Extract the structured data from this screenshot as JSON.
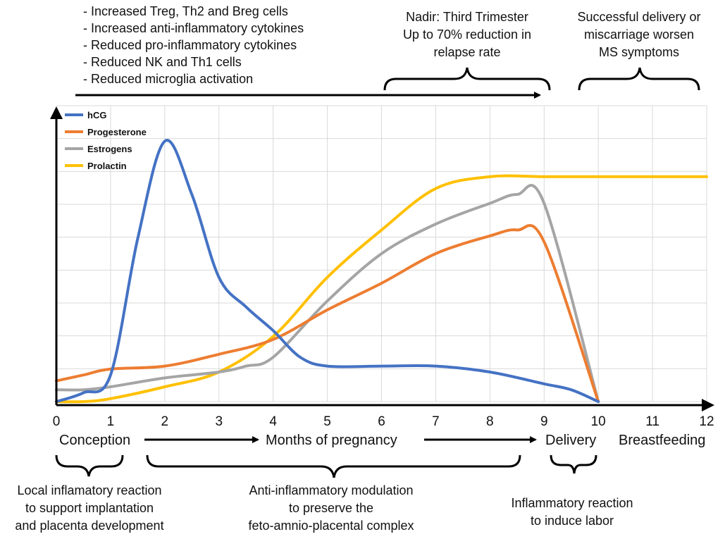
{
  "chart_data": {
    "type": "line",
    "xlabel": "Months of pregnancy",
    "xlim": [
      0,
      12
    ],
    "ylim": [
      0,
      1
    ],
    "grid": true,
    "legend_position": "top-left",
    "x_ticks": [
      "0",
      "1",
      "2",
      "3",
      "4",
      "5",
      "6",
      "7",
      "8",
      "9",
      "10",
      "11",
      "12"
    ],
    "milestones": {
      "conception": "Conception",
      "delivery": "Delivery",
      "breastfeeding": "Breastfeeding"
    },
    "series": [
      {
        "name": "hCG",
        "color": "#4472C4",
        "x": [
          0,
          0.5,
          1,
          1.5,
          2,
          2.5,
          3,
          3.5,
          4,
          4.5,
          5,
          6,
          7,
          8,
          9,
          9.5,
          10
        ],
        "y": [
          0.0,
          0.03,
          0.09,
          0.55,
          0.88,
          0.7,
          0.42,
          0.32,
          0.24,
          0.15,
          0.12,
          0.12,
          0.12,
          0.1,
          0.06,
          0.04,
          0.0
        ]
      },
      {
        "name": "Progesterone",
        "color": "#ED7D31",
        "x": [
          0,
          0.5,
          1,
          2,
          3,
          4,
          5,
          6,
          7,
          8,
          8.5,
          9,
          10
        ],
        "y": [
          0.07,
          0.09,
          0.11,
          0.12,
          0.16,
          0.21,
          0.31,
          0.4,
          0.5,
          0.56,
          0.58,
          0.54,
          0.0
        ]
      },
      {
        "name": "Estrogens",
        "color": "#A5A5A5",
        "x": [
          0,
          0.5,
          1,
          2,
          3,
          3.5,
          4,
          5,
          6,
          7,
          8,
          8.5,
          9,
          10
        ],
        "y": [
          0.04,
          0.04,
          0.05,
          0.08,
          0.1,
          0.12,
          0.15,
          0.34,
          0.5,
          0.6,
          0.67,
          0.7,
          0.67,
          0.0
        ]
      },
      {
        "name": "Prolactin",
        "color": "#FFC000",
        "x": [
          0,
          0.5,
          1,
          2,
          3,
          4,
          5,
          6,
          7,
          8,
          9,
          10,
          11,
          12
        ],
        "y": [
          0.0,
          0.0,
          0.01,
          0.05,
          0.1,
          0.22,
          0.42,
          0.58,
          0.72,
          0.76,
          0.76,
          0.76,
          0.76,
          0.76
        ]
      }
    ]
  },
  "annotations": {
    "top_left_list": [
      "- Increased Treg, Th2 and Breg cells",
      "- Increased anti-inflammatory cytokines",
      "- Reduced pro-inflammatory cytokines",
      "- Reduced NK and Th1 cells",
      "- Reduced microglia activation"
    ],
    "nadir": [
      "Nadir: Third Trimester",
      "Up to 70% reduction in",
      "relapse rate"
    ],
    "postpartum": [
      "Successful delivery or",
      "miscarriage worsen",
      "MS symptoms"
    ],
    "early": [
      "Local inflamatory reaction",
      "to support implantation",
      "and placenta development"
    ],
    "middle": [
      "Anti-inflammatory modulation",
      "to preserve the",
      "feto-amnio-placental complex"
    ],
    "labor": [
      "Inflammatory reaction",
      "to induce labor"
    ]
  }
}
